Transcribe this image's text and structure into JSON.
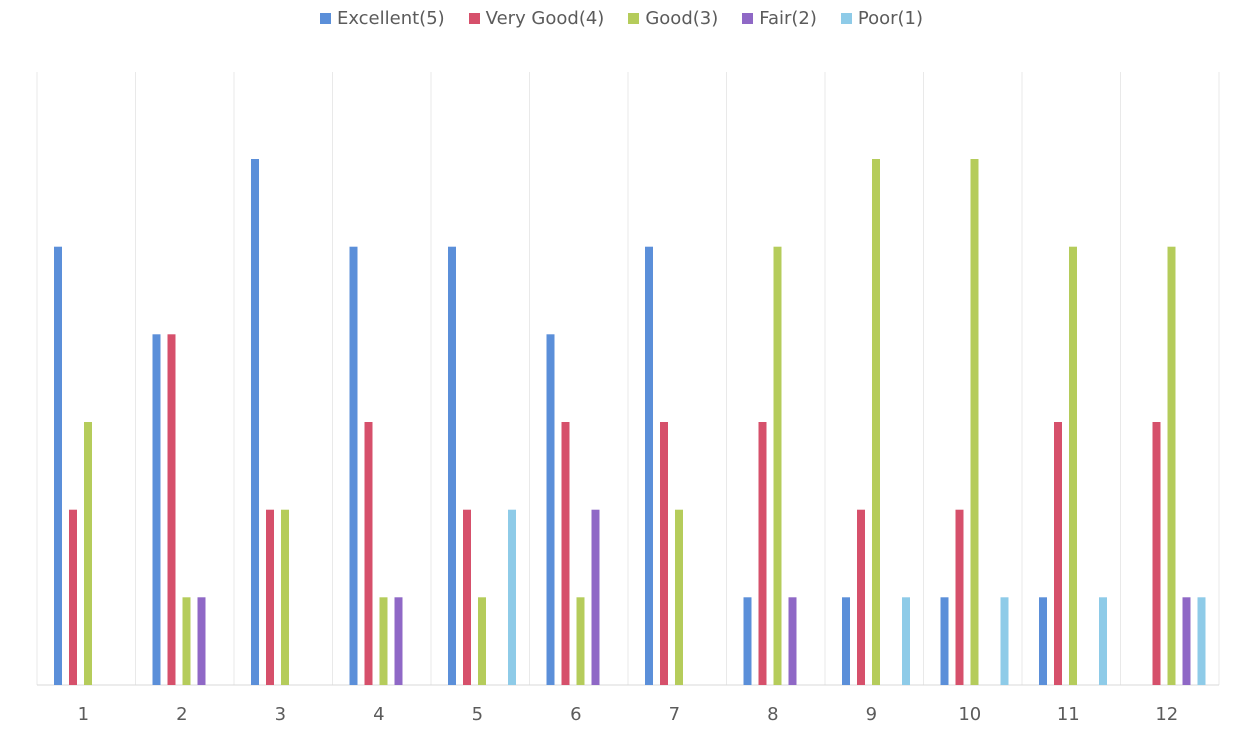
{
  "chart_data": {
    "type": "bar",
    "categories": [
      "1",
      "2",
      "3",
      "4",
      "5",
      "6",
      "7",
      "8",
      "9",
      "10",
      "11",
      "12"
    ],
    "series": [
      {
        "name": "Excellent(5)",
        "color": "#5b8fd9",
        "values": [
          5,
          4,
          6,
          5,
          5,
          4,
          5,
          1,
          1,
          1,
          1,
          0
        ]
      },
      {
        "name": "Very Good(4)",
        "color": "#d6506b",
        "values": [
          2,
          4,
          2,
          3,
          2,
          3,
          3,
          3,
          2,
          2,
          3,
          3
        ]
      },
      {
        "name": "Good(3)",
        "color": "#b5cc5b",
        "values": [
          3,
          1,
          2,
          1,
          1,
          1,
          2,
          5,
          6,
          6,
          5,
          5
        ]
      },
      {
        "name": "Fair(2)",
        "color": "#8f68c6",
        "values": [
          0,
          1,
          0,
          1,
          0,
          2,
          0,
          1,
          0,
          0,
          0,
          1
        ]
      },
      {
        "name": "Poor(1)",
        "color": "#8ecbe8",
        "values": [
          0,
          0,
          0,
          0,
          2,
          0,
          0,
          0,
          1,
          1,
          1,
          1
        ]
      }
    ],
    "ylim": [
      0,
      6
    ],
    "grid": "vertical",
    "legend_position": "top"
  }
}
